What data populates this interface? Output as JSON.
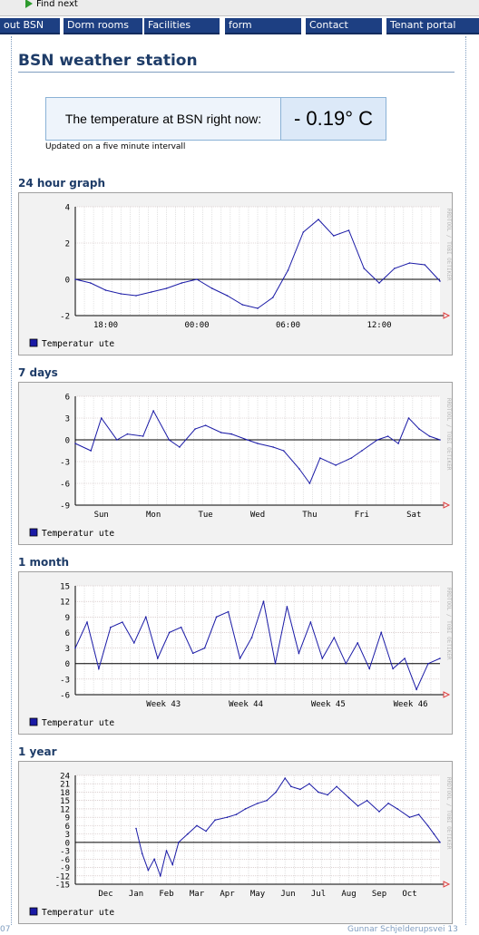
{
  "find_bar": {
    "find_next_label": "Find next"
  },
  "nav": {
    "items": [
      {
        "label": "out BSN"
      },
      {
        "label": "Dorm rooms"
      },
      {
        "label": "Facilities"
      },
      {
        "label": "form"
      },
      {
        "label": "Contact"
      },
      {
        "label": "Tenant portal"
      }
    ]
  },
  "page": {
    "title": "BSN weather station",
    "temperature_label": "The temperature at BSN right now:",
    "temperature_value": "- 0.19° C",
    "update_note": "Updated on a five minute intervall"
  },
  "footer": {
    "left_text": "07",
    "right_text": "Gunnar Schjelderupsvei 13"
  },
  "colors": {
    "nav_bg": "#1d3f82",
    "heading": "#1e3c68",
    "series": "#1a1aa6",
    "accent_arrow": "#e04040"
  },
  "chart_data": [
    {
      "title": "24 hour graph",
      "type": "line",
      "legend": "Temperatur ute",
      "watermark": "RRDTOOL / TOBI OETIKER",
      "ylim": [
        -2,
        4
      ],
      "yticks": [
        "4",
        "2",
        "0",
        "-2"
      ],
      "xlim": [
        0,
        24
      ],
      "x_ticks": [
        {
          "x": 2,
          "label": "18:00"
        },
        {
          "x": 8,
          "label": "00:00"
        },
        {
          "x": 14,
          "label": "06:00"
        },
        {
          "x": 20,
          "label": "12:00"
        },
        {
          "x": 26,
          "label": "18:00"
        }
      ],
      "x": [
        0,
        1,
        2,
        3,
        4,
        5,
        6,
        7,
        8,
        9,
        10,
        11,
        12,
        13,
        14,
        15,
        16,
        17,
        18,
        19,
        20,
        21,
        22,
        23,
        24
      ],
      "values": [
        0.0,
        -0.2,
        -0.6,
        -0.8,
        -0.9,
        -0.7,
        -0.5,
        -0.2,
        0.0,
        -0.5,
        -0.9,
        -1.4,
        -1.6,
        -1.0,
        0.5,
        2.6,
        3.3,
        2.4,
        2.7,
        0.6,
        -0.2,
        0.6,
        0.9,
        0.8,
        -0.1
      ]
    },
    {
      "title": "7 days",
      "type": "line",
      "legend": "Temperatur ute",
      "watermark": "RRDTOOL / TOBI OETIKER",
      "ylim": [
        -9,
        6
      ],
      "yticks": [
        "6",
        "3",
        "0",
        "-3",
        "-6",
        "-9"
      ],
      "xlim": [
        0,
        7
      ],
      "x_ticks": [
        {
          "x": 0.5,
          "label": "Sun"
        },
        {
          "x": 1.5,
          "label": "Mon"
        },
        {
          "x": 2.5,
          "label": "Tue"
        },
        {
          "x": 3.5,
          "label": "Wed"
        },
        {
          "x": 4.5,
          "label": "Thu"
        },
        {
          "x": 5.5,
          "label": "Fri"
        },
        {
          "x": 6.5,
          "label": "Sat"
        }
      ],
      "x": [
        0,
        0.3,
        0.5,
        0.8,
        1.0,
        1.3,
        1.5,
        1.8,
        2.0,
        2.3,
        2.5,
        2.8,
        3.0,
        3.3,
        3.5,
        3.8,
        4.0,
        4.3,
        4.5,
        4.7,
        5.0,
        5.3,
        5.5,
        5.8,
        6.0,
        6.2,
        6.4,
        6.6,
        6.8,
        7.0
      ],
      "values": [
        -0.5,
        -1.5,
        3.0,
        0.0,
        0.8,
        0.5,
        4.0,
        0.0,
        -1.0,
        1.5,
        2.0,
        1.0,
        0.8,
        0.0,
        -0.5,
        -1.0,
        -1.5,
        -4.0,
        -6.0,
        -2.5,
        -3.5,
        -2.5,
        -1.5,
        0.0,
        0.5,
        -0.5,
        3.0,
        1.5,
        0.5,
        0.0
      ]
    },
    {
      "title": "1 month",
      "type": "line",
      "legend": "Temperatur ute",
      "watermark": "RRDTOOL / TOBI OETIKER",
      "ylim": [
        -6,
        15
      ],
      "yticks": [
        "15",
        "12",
        "9",
        "6",
        "3",
        "0",
        "-3",
        "-6"
      ],
      "xlim": [
        0,
        31
      ],
      "x_ticks": [
        {
          "x": 7.5,
          "label": "Week 43"
        },
        {
          "x": 14.5,
          "label": "Week 44"
        },
        {
          "x": 21.5,
          "label": "Week 45"
        },
        {
          "x": 28.5,
          "label": "Week 46"
        }
      ],
      "x": [
        0,
        1,
        2,
        3,
        4,
        5,
        6,
        7,
        8,
        9,
        10,
        11,
        12,
        13,
        14,
        15,
        16,
        17,
        18,
        19,
        20,
        21,
        22,
        23,
        24,
        25,
        26,
        27,
        28,
        29,
        30,
        31
      ],
      "values": [
        3,
        8,
        -1,
        7,
        8,
        4,
        9,
        1,
        6,
        7,
        2,
        3,
        9,
        10,
        1,
        5,
        12,
        0,
        11,
        2,
        8,
        1,
        5,
        0,
        4,
        -1,
        6,
        -1,
        1,
        -5,
        0,
        1
      ]
    },
    {
      "title": "1 year",
      "type": "line",
      "legend": "Temperatur ute",
      "watermark": "RRDTOOL / TOBI OETIKER",
      "ylim": [
        -15,
        24
      ],
      "yticks": [
        "24",
        "21",
        "18",
        "15",
        "12",
        "9",
        "6",
        "3",
        "0",
        "-3",
        "-6",
        "-9",
        "-12",
        "-15"
      ],
      "xlim": [
        0,
        12
      ],
      "x_ticks": [
        {
          "x": 1,
          "label": "Dec"
        },
        {
          "x": 2,
          "label": "Jan"
        },
        {
          "x": 3,
          "label": "Feb"
        },
        {
          "x": 4,
          "label": "Mar"
        },
        {
          "x": 5,
          "label": "Apr"
        },
        {
          "x": 6,
          "label": "May"
        },
        {
          "x": 7,
          "label": "Jun"
        },
        {
          "x": 8,
          "label": "Jul"
        },
        {
          "x": 9,
          "label": "Aug"
        },
        {
          "x": 10,
          "label": "Sep"
        },
        {
          "x": 11,
          "label": "Oct"
        }
      ],
      "x": [
        2.0,
        2.2,
        2.4,
        2.6,
        2.8,
        3.0,
        3.2,
        3.4,
        3.7,
        4.0,
        4.3,
        4.6,
        5.0,
        5.3,
        5.6,
        6.0,
        6.3,
        6.6,
        6.9,
        7.1,
        7.4,
        7.7,
        8.0,
        8.3,
        8.6,
        9.0,
        9.3,
        9.6,
        10.0,
        10.3,
        10.6,
        11.0,
        11.3,
        11.6,
        11.8,
        12.0
      ],
      "values": [
        5,
        -4,
        -10,
        -6,
        -12,
        -3,
        -8,
        0,
        3,
        6,
        4,
        8,
        9,
        10,
        12,
        14,
        15,
        18,
        23,
        20,
        19,
        21,
        18,
        17,
        20,
        16,
        13,
        15,
        11,
        14,
        12,
        9,
        10,
        6,
        3,
        0
      ]
    }
  ]
}
